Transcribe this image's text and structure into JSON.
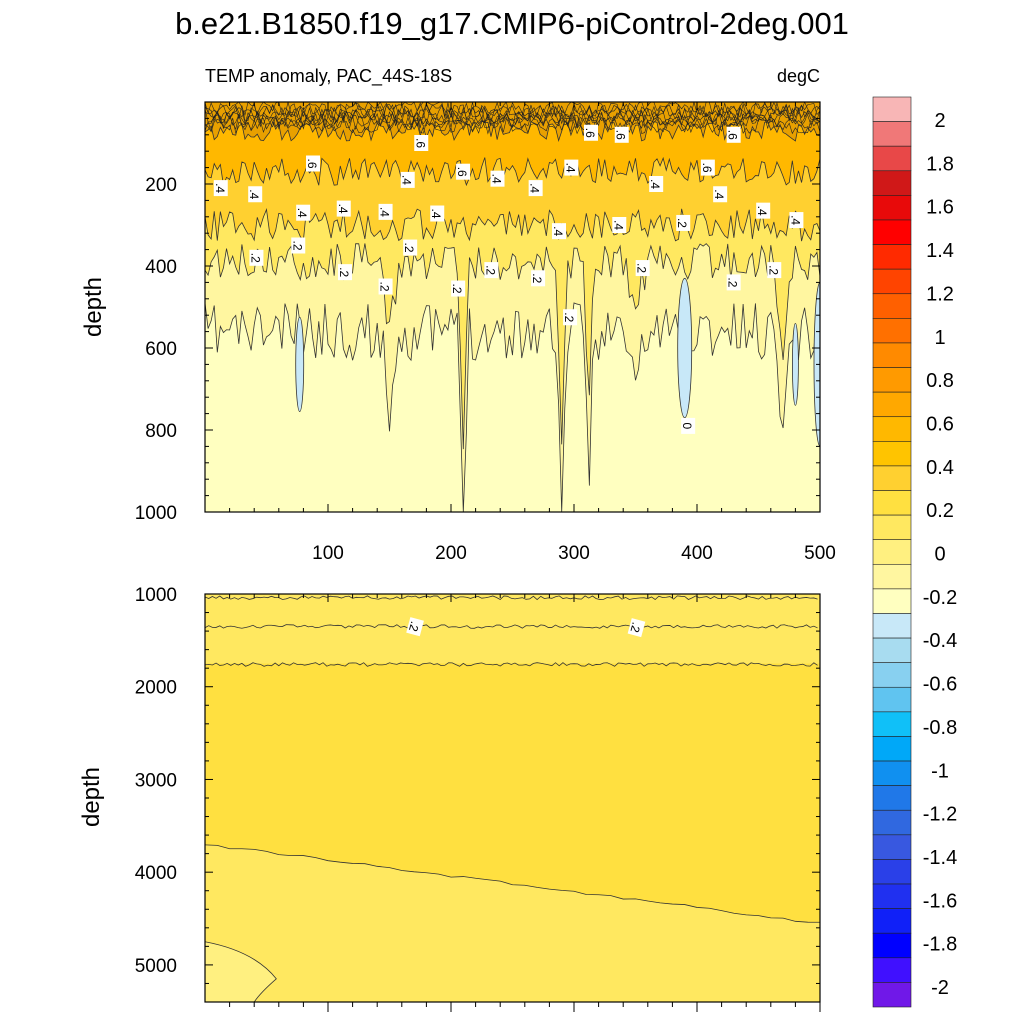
{
  "chart_data": [
    {
      "type": "heatmap",
      "title": "b.e21.B1850.f19_g17.CMIP6-piControl-2deg.001",
      "subtitle_left": "TEMP anomaly, PAC_44S-18S",
      "subtitle_right": "degC",
      "xlabel": "",
      "ylabel": "depth",
      "xlim": [
        0,
        500
      ],
      "ylim": [
        1000,
        0
      ],
      "xticks": [
        100,
        200,
        300,
        400,
        500
      ],
      "yticks": [
        200,
        400,
        600,
        800,
        1000
      ],
      "contour_labels": [
        {
          "x": 12,
          "y": 210,
          "text": ".4"
        },
        {
          "x": 40,
          "y": 225,
          "text": ".4"
        },
        {
          "x": 87,
          "y": 150,
          "text": ".6"
        },
        {
          "x": 79,
          "y": 270,
          "text": ".4"
        },
        {
          "x": 112,
          "y": 260,
          "text": ".4"
        },
        {
          "x": 146,
          "y": 268,
          "text": ".4"
        },
        {
          "x": 164,
          "y": 190,
          "text": ".4"
        },
        {
          "x": 175,
          "y": 100,
          "text": ".6"
        },
        {
          "x": 188,
          "y": 272,
          "text": ".4"
        },
        {
          "x": 209,
          "y": 170,
          "text": ".6"
        },
        {
          "x": 237,
          "y": 187,
          "text": ".4"
        },
        {
          "x": 268,
          "y": 210,
          "text": ".4"
        },
        {
          "x": 297,
          "y": 160,
          "text": ".4"
        },
        {
          "x": 313,
          "y": 75,
          "text": ".6"
        },
        {
          "x": 338,
          "y": 80,
          "text": ".6"
        },
        {
          "x": 287,
          "y": 315,
          "text": ".4"
        },
        {
          "x": 336,
          "y": 300,
          "text": ".4"
        },
        {
          "x": 366,
          "y": 200,
          "text": ".4"
        },
        {
          "x": 408,
          "y": 160,
          "text": ".6"
        },
        {
          "x": 418,
          "y": 225,
          "text": ".4"
        },
        {
          "x": 429,
          "y": 80,
          "text": ".6"
        },
        {
          "x": 453,
          "y": 265,
          "text": ".4"
        },
        {
          "x": 480,
          "y": 288,
          "text": ".4"
        },
        {
          "x": 41,
          "y": 380,
          "text": ".2"
        },
        {
          "x": 75,
          "y": 350,
          "text": ".2"
        },
        {
          "x": 113,
          "y": 415,
          "text": ".2"
        },
        {
          "x": 146,
          "y": 450,
          "text": ".2"
        },
        {
          "x": 166,
          "y": 355,
          "text": ".2"
        },
        {
          "x": 205,
          "y": 455,
          "text": ".2"
        },
        {
          "x": 232,
          "y": 410,
          "text": ".2"
        },
        {
          "x": 270,
          "y": 430,
          "text": ".2"
        },
        {
          "x": 296,
          "y": 525,
          "text": ".2"
        },
        {
          "x": 355,
          "y": 405,
          "text": ".2"
        },
        {
          "x": 388,
          "y": 295,
          "text": ".2"
        },
        {
          "x": 429,
          "y": 440,
          "text": ".2"
        },
        {
          "x": 462,
          "y": 410,
          "text": ".2"
        },
        {
          "x": 392,
          "y": 790,
          "text": "0"
        }
      ]
    },
    {
      "type": "heatmap",
      "xlabel": "",
      "ylabel": "depth",
      "xlim": [
        0,
        500
      ],
      "ylim": [
        5400,
        1000
      ],
      "yticks": [
        1000,
        2000,
        3000,
        4000,
        5000
      ],
      "contour_labels": [
        {
          "x": 170,
          "y": 1350,
          "text": ".2"
        },
        {
          "x": 350,
          "y": 1360,
          "text": ".2"
        }
      ]
    }
  ],
  "colorbar": {
    "labels": [
      "2",
      "1.8",
      "1.6",
      "1.4",
      "1.2",
      "1",
      "0.8",
      "0.6",
      "0.4",
      "0.2",
      "0",
      "-0.2",
      "-0.4",
      "-0.6",
      "-0.8",
      "-1",
      "-1.2",
      "-1.4",
      "-1.6",
      "-1.8",
      "-2"
    ],
    "colors_top_to_bottom": [
      "#f8b6b6",
      "#f07878",
      "#e84848",
      "#d01818",
      "#e80a0a",
      "#ff0000",
      "#ff2a00",
      "#ff4400",
      "#ff6000",
      "#ff7000",
      "#ff8a00",
      "#ff9a00",
      "#ffa800",
      "#ffb800",
      "#ffc400",
      "#ffd030",
      "#ffe040",
      "#ffe860",
      "#fff080",
      "#fff6a0",
      "#ffffc0",
      "#c8e8f8",
      "#a8dcf0",
      "#88d0f0",
      "#60c4f0",
      "#10c0f8",
      "#00a8f8",
      "#1090f0",
      "#2078e8",
      "#3068e0",
      "#3858e0",
      "#2a40e8",
      "#2030f0",
      "#1020f8",
      "#0000ff",
      "#4010ff",
      "#7018e8"
    ]
  },
  "colors": {
    "upper_fill": [
      "#ffffc0",
      "#fff6a0",
      "#ffe860",
      "#ffd030",
      "#ffb800",
      "#e8a000"
    ],
    "lower_fill": [
      "#fff080",
      "#ffe860",
      "#ffe040"
    ],
    "negative": "#c8e8f8"
  }
}
